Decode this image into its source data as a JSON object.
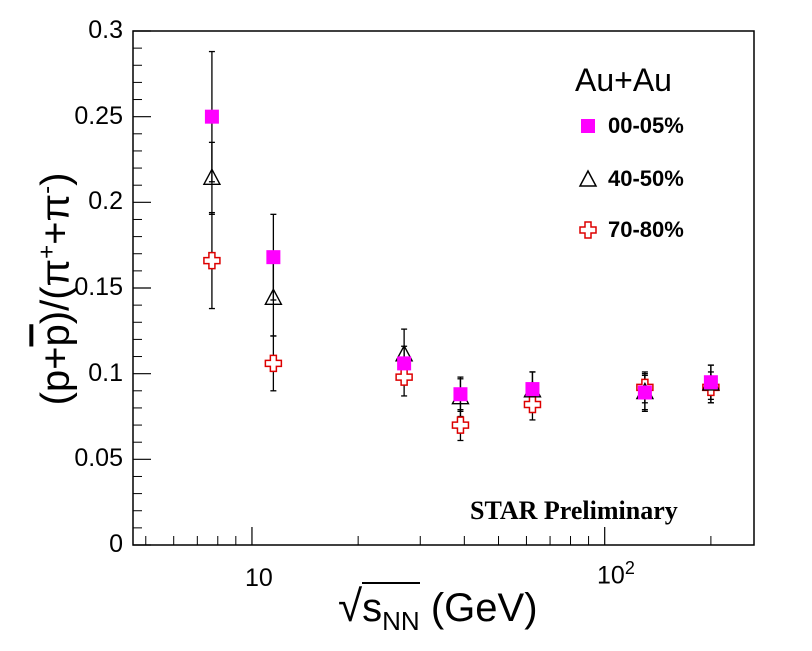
{
  "chart_data": {
    "type": "scatter",
    "x_scale": "log",
    "xlim": [
      4.6,
      265
    ],
    "ylim": [
      0,
      0.3
    ],
    "xlabel": "√s_NN (GeV)",
    "ylabel": "(p+p̄)/(π⁺+π⁻)",
    "y_ticks": [
      "0",
      "0.05",
      "0.1",
      "0.15",
      "0.2",
      "0.25",
      "0.3"
    ],
    "x_ticks": [
      "10",
      "10²"
    ],
    "legend_title": "Au+Au",
    "legend_position": "top-right",
    "annotation": "STAR Preliminary",
    "series": [
      {
        "name": "00-05%",
        "marker": "filled-square",
        "color": "#ff00ff",
        "points": [
          {
            "x": 7.7,
            "y": 0.25,
            "err": 0.038
          },
          {
            "x": 11.5,
            "y": 0.168,
            "err": 0.025
          },
          {
            "x": 27,
            "y": 0.106,
            "err": 0.01
          },
          {
            "x": 39,
            "y": 0.088,
            "err": 0.01
          },
          {
            "x": 62.4,
            "y": 0.091,
            "err": 0.01
          },
          {
            "x": 130,
            "y": 0.089,
            "err": 0.01
          },
          {
            "x": 200,
            "y": 0.095,
            "err": 0.01
          }
        ]
      },
      {
        "name": "40-50%",
        "marker": "open-triangle",
        "color": "#000000",
        "points": [
          {
            "x": 7.7,
            "y": 0.214,
            "err": 0.021
          },
          {
            "x": 11.5,
            "y": 0.144,
            "err": 0.022
          },
          {
            "x": 27,
            "y": 0.111,
            "err": 0.015
          },
          {
            "x": 39,
            "y": 0.086,
            "err": 0.011
          },
          {
            "x": 62.4,
            "y": 0.09,
            "err": 0.011
          },
          {
            "x": 130,
            "y": 0.089,
            "err": 0.011
          },
          {
            "x": 200,
            "y": 0.094,
            "err": 0.011
          }
        ]
      },
      {
        "name": "70-80%",
        "marker": "open-cross",
        "color": "#dd0000",
        "points": [
          {
            "x": 7.7,
            "y": 0.166,
            "err": 0.028
          },
          {
            "x": 11.5,
            "y": 0.106,
            "err": 0.016
          },
          {
            "x": 27,
            "y": 0.098,
            "err": 0.011
          },
          {
            "x": 39,
            "y": 0.07,
            "err": 0.009
          },
          {
            "x": 62.4,
            "y": 0.082,
            "err": 0.009
          },
          {
            "x": 130,
            "y": 0.092,
            "err": 0.009
          },
          {
            "x": 200,
            "y": 0.092,
            "err": 0.009
          }
        ]
      }
    ]
  }
}
